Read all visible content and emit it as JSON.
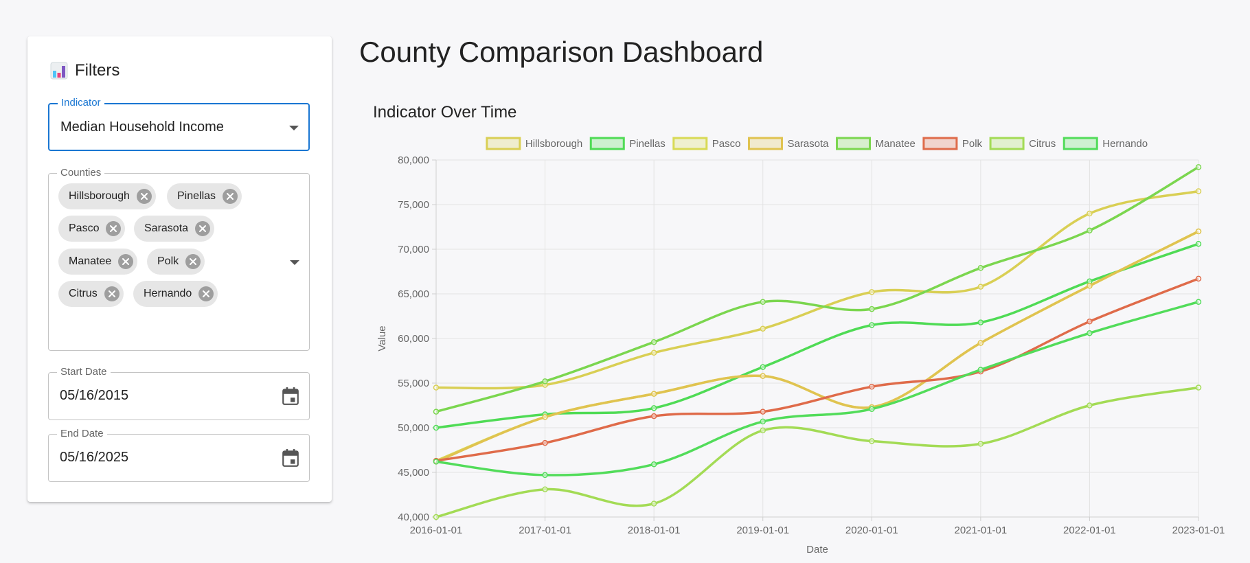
{
  "dashboard": {
    "title": "County Comparison Dashboard"
  },
  "filters": {
    "title": "Filters",
    "icon": "bar-chart-icon",
    "indicator": {
      "label": "Indicator",
      "value": "Median Household Income"
    },
    "counties": {
      "label": "Counties",
      "selected": [
        "Hillsborough",
        "Pinellas",
        "Pasco",
        "Sarasota",
        "Manatee",
        "Polk",
        "Citrus",
        "Hernando"
      ]
    },
    "start_date": {
      "label": "Start Date",
      "value": "05/16/2015"
    },
    "end_date": {
      "label": "End Date",
      "value": "05/16/2025"
    }
  },
  "chart_data": {
    "type": "line",
    "title": "Indicator Over Time",
    "xlabel": "Date",
    "ylabel": "Value",
    "x": [
      "2016-01-01",
      "2017-01-01",
      "2018-01-01",
      "2019-01-01",
      "2020-01-01",
      "2021-01-01",
      "2022-01-01",
      "2023-01-01"
    ],
    "ylim": [
      40000,
      80000
    ],
    "yticks": [
      "40,000",
      "45,000",
      "50,000",
      "55,000",
      "60,000",
      "65,000",
      "70,000",
      "75,000",
      "80,000"
    ],
    "grid": true,
    "legend_position": "top",
    "series": [
      {
        "name": "Hillsborough",
        "color": "#d9cf54",
        "values": [
          54500,
          54800,
          58400,
          61100,
          65200,
          65800,
          74000,
          76500
        ]
      },
      {
        "name": "Pinellas",
        "color": "#4fdb55",
        "values": [
          50000,
          51500,
          52200,
          56800,
          61500,
          61800,
          66400,
          70600
        ]
      },
      {
        "name": "Pasco",
        "color": "#d8da55",
        "values": [
          46300,
          51200,
          53800,
          55800,
          52300,
          59500,
          65900,
          72000
        ]
      },
      {
        "name": "Sarasota",
        "color": "#e0c350",
        "values": [
          46200,
          51200,
          53800,
          55800,
          52300,
          59500,
          65900,
          72000
        ]
      },
      {
        "name": "Manatee",
        "color": "#7bd64f",
        "values": [
          51800,
          55200,
          59600,
          64100,
          63300,
          67900,
          72100,
          79200
        ]
      },
      {
        "name": "Polk",
        "color": "#df6b4a",
        "values": [
          46300,
          48300,
          51300,
          51800,
          54600,
          56300,
          61900,
          66700
        ]
      },
      {
        "name": "Citrus",
        "color": "#a3db55",
        "values": [
          40000,
          43100,
          41500,
          49700,
          48500,
          48200,
          52500,
          54500
        ]
      },
      {
        "name": "Hernando",
        "color": "#52dc5a",
        "values": [
          46200,
          44700,
          45900,
          50700,
          52100,
          56500,
          60600,
          64100
        ]
      }
    ]
  }
}
